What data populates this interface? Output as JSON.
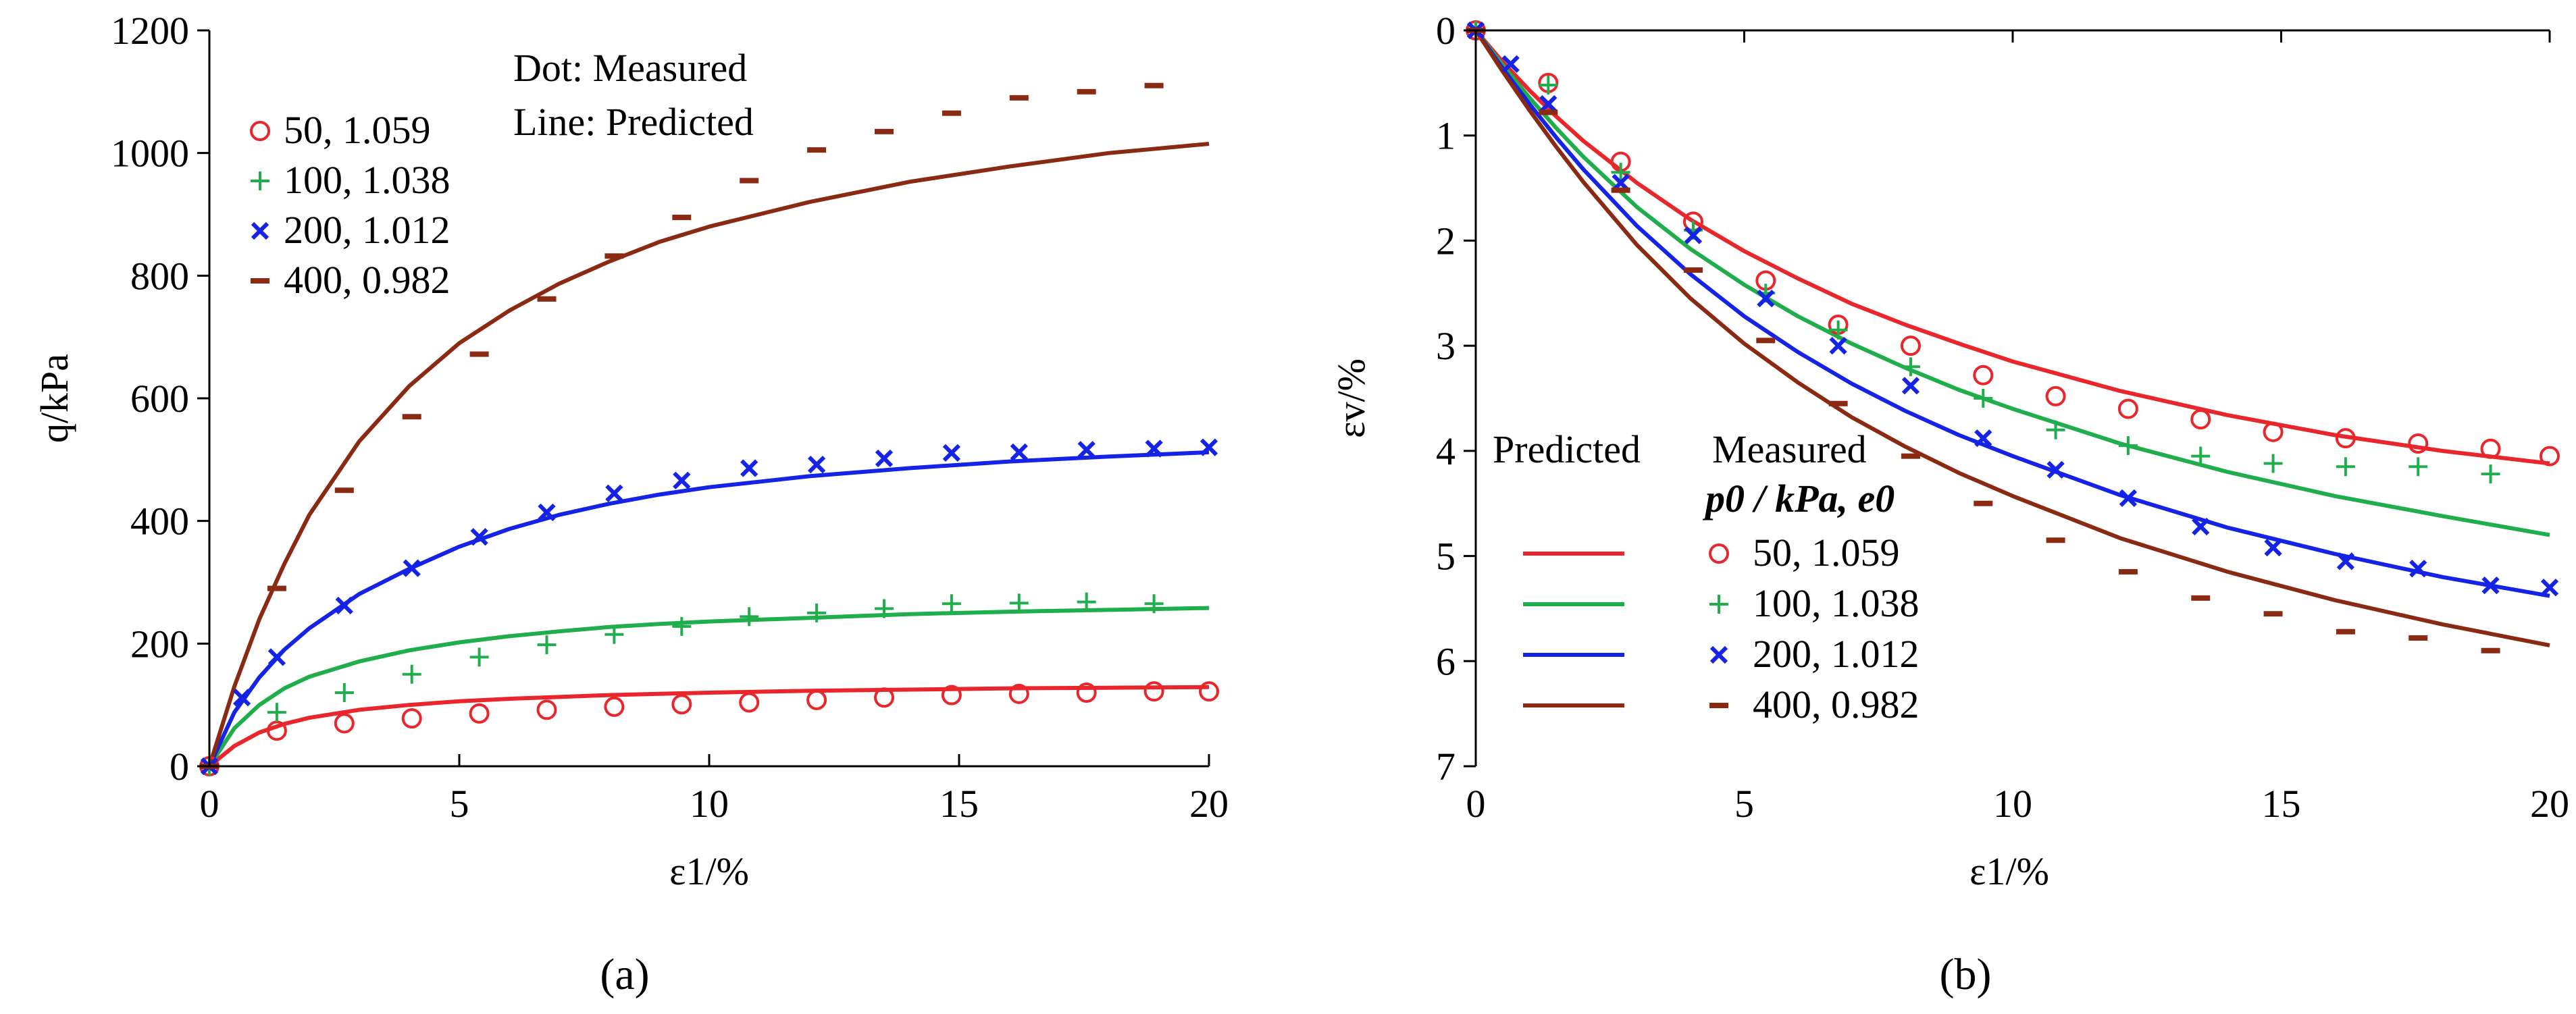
{
  "chart_data": [
    {
      "panel_label": "(a)",
      "type": "line",
      "title": "",
      "xlabel": "ε1/%",
      "ylabel": "q/kPa",
      "xlim": [
        0,
        20
      ],
      "ylim": [
        0,
        1200
      ],
      "xticks": [
        "0",
        "5",
        "10",
        "15",
        "20"
      ],
      "yticks": [
        "0",
        "200",
        "400",
        "600",
        "800",
        "1000",
        "1200"
      ],
      "annotation_lines": [
        "Dot: Measured",
        "Line: Predicted"
      ],
      "measured_series": [
        {
          "name": "50, 1.059",
          "marker": "circle",
          "color": "#e8262b",
          "x": [
            0,
            1.35,
            2.7,
            4.05,
            5.4,
            6.75,
            8.1,
            9.45,
            10.8,
            12.15,
            13.5,
            14.85,
            16.2,
            17.55,
            18.9,
            20
          ],
          "y": [
            0,
            58,
            70,
            78,
            86,
            92,
            97,
            101,
            104,
            108,
            112,
            116,
            118,
            120,
            122,
            122
          ]
        },
        {
          "name": "100, 1.038",
          "marker": "plus",
          "color": "#1fae4b",
          "x": [
            0,
            1.35,
            2.7,
            4.05,
            5.4,
            6.75,
            8.1,
            9.45,
            10.8,
            12.15,
            13.5,
            14.85,
            16.2,
            17.55,
            18.9
          ],
          "y": [
            0,
            88,
            120,
            150,
            178,
            198,
            215,
            228,
            244,
            250,
            257,
            265,
            266,
            268,
            265
          ]
        },
        {
          "name": "200, 1.012",
          "marker": "x",
          "color": "#1423e6",
          "x": [
            0,
            0.65,
            1.35,
            2.7,
            4.05,
            5.4,
            6.75,
            8.1,
            9.45,
            10.8,
            12.15,
            13.5,
            14.85,
            16.2,
            17.55,
            18.9,
            20
          ],
          "y": [
            0,
            112,
            178,
            262,
            323,
            374,
            414,
            445,
            466,
            486,
            492,
            502,
            511,
            512,
            516,
            518,
            520
          ]
        },
        {
          "name": "400, 0.982",
          "marker": "dash",
          "color": "#8b2a12",
          "x": [
            0,
            1.35,
            2.7,
            4.05,
            5.4,
            6.75,
            8.1,
            9.45,
            10.8,
            12.15,
            13.5,
            14.85,
            16.2,
            17.55,
            18.9
          ],
          "y": [
            0,
            290,
            450,
            570,
            672,
            762,
            832,
            895,
            955,
            1005,
            1035,
            1065,
            1090,
            1100,
            1110
          ]
        }
      ],
      "predicted_series": [
        {
          "name": "50, 1.059",
          "color": "#e8262b",
          "x": [
            0,
            0.5,
            1,
            1.5,
            2,
            3,
            4,
            5,
            6,
            7,
            8,
            9,
            10,
            12,
            14,
            16,
            18,
            20
          ],
          "y": [
            0,
            33,
            55,
            69,
            79,
            92,
            100,
            106,
            110,
            113,
            116,
            118,
            120,
            123,
            125,
            127,
            128,
            129
          ]
        },
        {
          "name": "100, 1.038",
          "color": "#1fae4b",
          "x": [
            0,
            0.5,
            1,
            1.5,
            2,
            3,
            4,
            5,
            6,
            7,
            8,
            9,
            10,
            12,
            14,
            16,
            18,
            20
          ],
          "y": [
            0,
            62,
            100,
            127,
            146,
            171,
            189,
            202,
            212,
            220,
            227,
            232,
            236,
            242,
            248,
            252,
            255,
            258
          ]
        },
        {
          "name": "200, 1.012",
          "color": "#1423e6",
          "x": [
            0,
            0.5,
            1,
            1.5,
            2,
            3,
            4,
            5,
            6,
            7,
            8,
            9,
            10,
            12,
            14,
            16,
            18,
            20
          ],
          "y": [
            0,
            88,
            145,
            190,
            225,
            281,
            322,
            358,
            387,
            410,
            428,
            443,
            455,
            473,
            486,
            497,
            505,
            512
          ]
        },
        {
          "name": "400, 0.982",
          "color": "#8b2a12",
          "x": [
            0,
            0.5,
            1,
            1.5,
            2,
            3,
            4,
            5,
            6,
            7,
            8,
            9,
            10,
            12,
            14,
            16,
            18,
            20
          ],
          "y": [
            0,
            130,
            240,
            330,
            410,
            530,
            620,
            690,
            743,
            787,
            823,
            855,
            880,
            920,
            953,
            978,
            1000,
            1015
          ]
        }
      ]
    },
    {
      "panel_label": "(b)",
      "type": "line",
      "title": "",
      "xlabel": "ε1/%",
      "ylabel": "εv/%",
      "xlim": [
        0,
        20
      ],
      "ylim": [
        0,
        7
      ],
      "y_inverted": true,
      "xticks": [
        "0",
        "5",
        "10",
        "15",
        "20"
      ],
      "yticks": [
        "0",
        "1",
        "2",
        "3",
        "4",
        "5",
        "6",
        "7"
      ],
      "legend_header": {
        "predicted": "Predicted",
        "measured": "Measured",
        "params": "p0 / kPa, e0"
      },
      "measured_series": [
        {
          "name": "50, 1.059",
          "marker": "circle",
          "color": "#e8262b",
          "x": [
            0,
            1.35,
            2.7,
            4.05,
            5.4,
            6.75,
            8.1,
            9.45,
            10.8,
            12.15,
            13.5,
            14.85,
            16.2,
            17.55,
            18.9,
            20
          ],
          "y": [
            0,
            0.5,
            1.25,
            1.82,
            2.38,
            2.8,
            3.0,
            3.28,
            3.48,
            3.6,
            3.7,
            3.82,
            3.88,
            3.93,
            3.98,
            4.05
          ]
        },
        {
          "name": "100, 1.038",
          "marker": "plus",
          "color": "#1fae4b",
          "x": [
            0,
            1.35,
            2.7,
            4.05,
            5.4,
            6.75,
            8.1,
            9.45,
            10.8,
            12.15,
            13.5,
            14.85,
            16.2,
            17.55,
            18.9
          ],
          "y": [
            0,
            0.52,
            1.35,
            1.9,
            2.5,
            2.85,
            3.2,
            3.5,
            3.8,
            3.95,
            4.05,
            4.12,
            4.15,
            4.15,
            4.22
          ]
        },
        {
          "name": "200, 1.012",
          "marker": "x",
          "color": "#1423e6",
          "x": [
            0,
            0.65,
            1.35,
            2.7,
            4.05,
            5.4,
            6.75,
            8.1,
            9.45,
            10.8,
            12.15,
            13.5,
            14.85,
            16.2,
            17.55,
            18.9,
            20
          ],
          "y": [
            0,
            0.32,
            0.7,
            1.45,
            1.95,
            2.55,
            3.0,
            3.38,
            3.88,
            4.18,
            4.45,
            4.72,
            4.92,
            5.05,
            5.12,
            5.28,
            5.3
          ]
        },
        {
          "name": "400, 0.982",
          "marker": "dash",
          "color": "#8b2a12",
          "x": [
            0,
            1.35,
            2.7,
            4.05,
            5.4,
            6.75,
            8.1,
            9.45,
            10.8,
            12.15,
            13.5,
            14.85,
            16.2,
            17.55,
            18.9
          ],
          "y": [
            0,
            0.78,
            1.52,
            2.28,
            2.95,
            3.55,
            4.05,
            4.5,
            4.85,
            5.15,
            5.4,
            5.55,
            5.72,
            5.78,
            5.9
          ]
        }
      ],
      "predicted_series": [
        {
          "name": "50, 1.059",
          "color": "#e8262b",
          "x": [
            0,
            0.5,
            1,
            1.5,
            2,
            3,
            4,
            5,
            6,
            7,
            8,
            9,
            10,
            12,
            14,
            16,
            18,
            20
          ],
          "y": [
            0,
            0.3,
            0.57,
            0.82,
            1.05,
            1.45,
            1.8,
            2.1,
            2.36,
            2.6,
            2.8,
            2.98,
            3.15,
            3.43,
            3.66,
            3.85,
            4.0,
            4.12
          ]
        },
        {
          "name": "100, 1.038",
          "color": "#1fae4b",
          "x": [
            0,
            0.5,
            1,
            1.5,
            2,
            3,
            4,
            5,
            6,
            7,
            8,
            9,
            10,
            12,
            14,
            16,
            18,
            20
          ],
          "y": [
            0,
            0.33,
            0.64,
            0.93,
            1.2,
            1.68,
            2.08,
            2.42,
            2.72,
            2.98,
            3.21,
            3.42,
            3.6,
            3.93,
            4.2,
            4.43,
            4.62,
            4.8
          ]
        },
        {
          "name": "200, 1.012",
          "color": "#1423e6",
          "x": [
            0,
            0.5,
            1,
            1.5,
            2,
            3,
            4,
            5,
            6,
            7,
            8,
            9,
            10,
            12,
            14,
            16,
            18,
            20
          ],
          "y": [
            0,
            0.36,
            0.7,
            1.02,
            1.32,
            1.86,
            2.32,
            2.72,
            3.06,
            3.36,
            3.62,
            3.85,
            4.05,
            4.42,
            4.73,
            4.98,
            5.2,
            5.38
          ]
        },
        {
          "name": "400, 0.982",
          "color": "#8b2a12",
          "x": [
            0,
            0.5,
            1,
            1.5,
            2,
            3,
            4,
            5,
            6,
            7,
            8,
            9,
            10,
            12,
            14,
            16,
            18,
            20
          ],
          "y": [
            0,
            0.39,
            0.76,
            1.11,
            1.44,
            2.04,
            2.55,
            2.98,
            3.35,
            3.68,
            3.96,
            4.21,
            4.43,
            4.83,
            5.15,
            5.42,
            5.65,
            5.85
          ]
        }
      ]
    }
  ]
}
